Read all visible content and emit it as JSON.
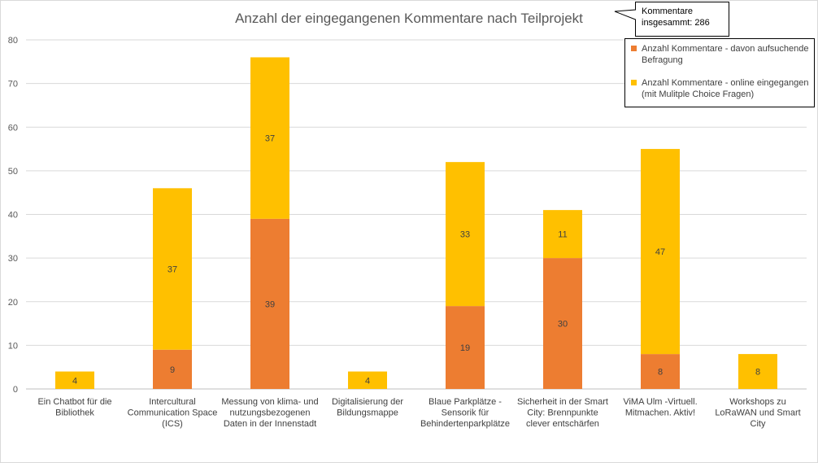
{
  "chart_data": {
    "type": "bar",
    "stacked": true,
    "title": "Anzahl der eingegangenen Kommentare nach Teilprojekt",
    "xlabel": "",
    "ylabel": "",
    "ylim": [
      0,
      80
    ],
    "yticks": [
      0,
      10,
      20,
      30,
      40,
      50,
      60,
      70,
      80
    ],
    "grid": true,
    "categories": [
      [
        "Ein Chatbot für die",
        "Bibliothek"
      ],
      [
        "Intercultural",
        "Communication Space",
        "(ICS)"
      ],
      [
        "Messung von klima- und",
        "nutzungsbezogenen",
        "Daten in der Innenstadt"
      ],
      [
        "Digitalisierung der",
        "Bildungsmappe"
      ],
      [
        "Blaue Parkplätze -",
        "Sensorik für",
        "Behindertenparkplätze"
      ],
      [
        "Sicherheit in der Smart",
        "City: Brennpunkte",
        "clever entschärfen"
      ],
      [
        "ViMA Ulm -Virtuell.",
        "Mitmachen. Aktiv!"
      ],
      [
        "Workshops zu",
        "LoRaWAN und Smart",
        "City"
      ]
    ],
    "series": [
      {
        "name": [
          "Anzahl Kommentare - davon aufsuchende",
          "Befragung"
        ],
        "color": "#ED7D31",
        "values": [
          0,
          9,
          39,
          0,
          19,
          30,
          8,
          0
        ]
      },
      {
        "name": [
          "Anzahl Kommentare - online eingegangen",
          "(mit Mulitple Choice Fragen)"
        ],
        "color": "#FFC000",
        "values": [
          4,
          37,
          37,
          4,
          33,
          11,
          47,
          8
        ]
      }
    ],
    "legend_position": "top-right",
    "annotation": [
      "Kommentare",
      "insgesammt: 286"
    ]
  }
}
